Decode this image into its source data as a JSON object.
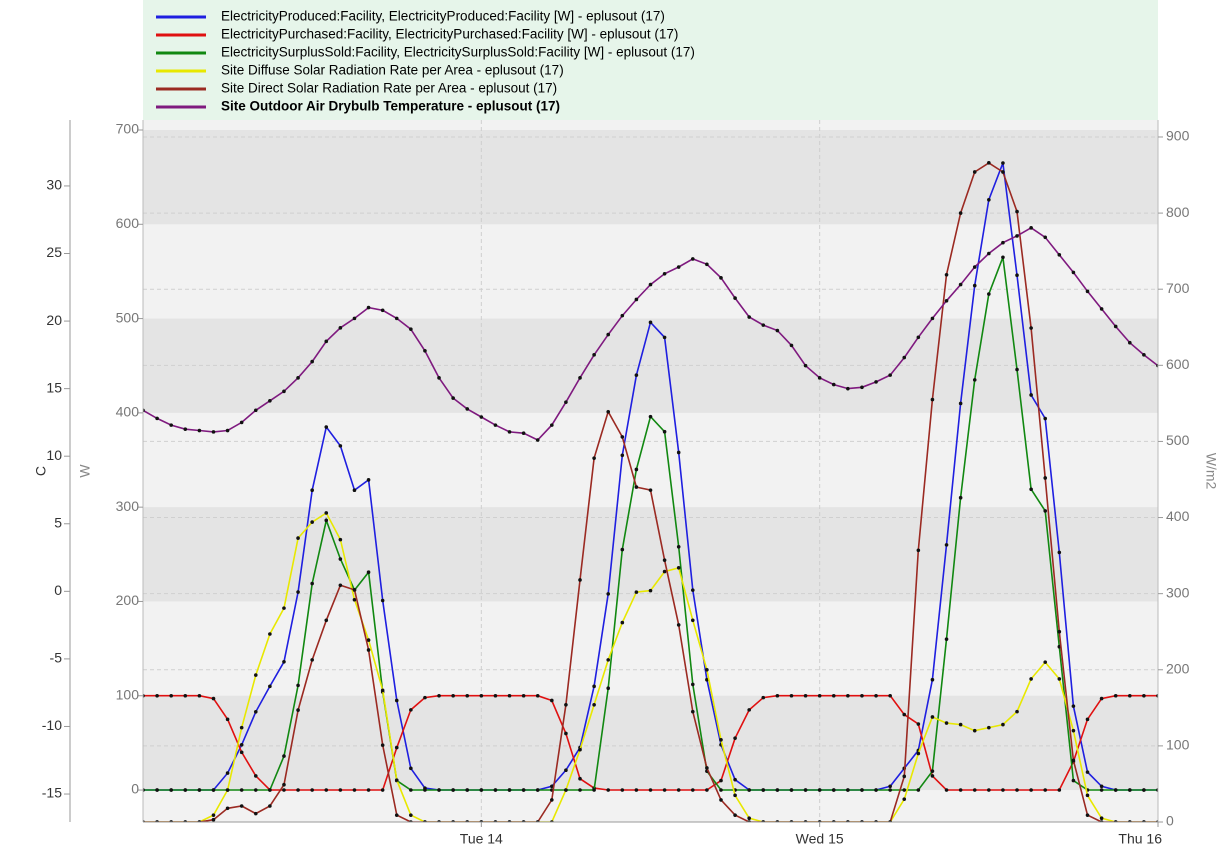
{
  "chart_data": {
    "type": "line",
    "ylabel": "W",
    "y2label": "C",
    "y3label": "W/m2",
    "x": [
      0,
      1,
      2,
      3,
      4,
      5,
      6,
      7,
      8,
      9,
      10,
      11,
      12,
      13,
      14,
      15,
      16,
      17,
      18,
      19,
      20,
      21,
      22,
      23,
      24,
      25,
      26,
      27,
      28,
      29,
      30,
      31,
      32,
      33,
      34,
      35,
      36,
      37,
      38,
      39,
      40,
      41,
      42,
      43,
      44,
      45,
      46,
      47,
      48,
      49,
      50,
      51,
      52,
      53,
      54,
      55,
      56,
      57,
      58,
      59,
      60,
      61,
      62,
      63,
      64,
      65,
      66,
      67,
      68,
      69,
      70,
      71,
      72
    ],
    "xlim": [
      0,
      72
    ],
    "xticks": [
      {
        "value": 24,
        "label": "Tue 14"
      },
      {
        "value": 48,
        "label": "Wed 15"
      },
      {
        "value": 72,
        "label": "Thu 16"
      }
    ],
    "ylim": [
      -33.9,
      710.6
    ],
    "yticks": [
      0,
      100,
      200,
      300,
      400,
      500,
      600,
      700
    ],
    "y2lim": [
      -17.07,
      34.88
    ],
    "y2ticks": [
      -15,
      -10,
      -5,
      0,
      5,
      10,
      15,
      20,
      25,
      30
    ],
    "y3lim": [
      0,
      922.3
    ],
    "y3ticks": [
      0,
      100,
      200,
      300,
      400,
      500,
      600,
      700,
      800,
      900
    ],
    "grid": true,
    "series": [
      {
        "name": "ElectricityProduced:Facility, ElectricityProduced:Facility [W] - eplusout (17)",
        "color": "#1f1fe0",
        "values": [
          0,
          0,
          0,
          0,
          0,
          0,
          18,
          48,
          83,
          110,
          136,
          210,
          318,
          385,
          365,
          318,
          329,
          201,
          95,
          23,
          2,
          0,
          0,
          0,
          0,
          0,
          0,
          0,
          0,
          4,
          21,
          45,
          110,
          208,
          355,
          440,
          496,
          480,
          358,
          212,
          117,
          48,
          11,
          0,
          0,
          0,
          0,
          0,
          0,
          0,
          0,
          0,
          0,
          4,
          23,
          42,
          117,
          260,
          410,
          535,
          626,
          665,
          546,
          419,
          394,
          252,
          89,
          19,
          4,
          0,
          0,
          0,
          0
        ]
      },
      {
        "name": "ElectricityPurchased:Facility, ElectricityPurchased:Facility [W] - eplusout (17)",
        "color": "#e01010",
        "values": [
          100,
          100,
          100,
          100,
          100,
          97,
          75,
          40,
          15,
          0,
          0,
          0,
          0,
          0,
          0,
          0,
          0,
          0,
          45,
          85,
          98,
          100,
          100,
          100,
          100,
          100,
          100,
          100,
          100,
          95,
          60,
          12,
          2,
          0,
          0,
          0,
          0,
          0,
          0,
          0,
          0,
          10,
          55,
          85,
          98,
          100,
          100,
          100,
          100,
          100,
          100,
          100,
          100,
          100,
          80,
          70,
          15,
          0,
          0,
          0,
          0,
          0,
          0,
          0,
          0,
          0,
          30,
          75,
          97,
          100,
          100,
          100,
          100
        ]
      },
      {
        "name": "ElectricitySurplusSold:Facility, ElectricitySurplusSold:Facility [W] - eplusout (17)",
        "color": "#118811",
        "values": [
          0,
          0,
          0,
          0,
          0,
          0,
          0,
          0,
          0,
          0,
          36,
          111,
          219,
          286,
          245,
          212,
          231,
          104,
          10,
          0,
          0,
          0,
          0,
          0,
          0,
          0,
          0,
          0,
          0,
          0,
          0,
          0,
          0,
          108,
          255,
          340,
          396,
          380,
          258,
          112,
          20,
          0,
          0,
          0,
          0,
          0,
          0,
          0,
          0,
          0,
          0,
          0,
          0,
          0,
          0,
          0,
          20,
          160,
          310,
          435,
          526,
          565,
          446,
          319,
          296,
          152,
          10,
          0,
          0,
          0,
          0,
          0,
          0
        ]
      },
      {
        "name": "Site Diffuse Solar Radiation Rate per Area - eplusout (17)",
        "color": "#e8e800",
        "axis": "y3",
        "values": [
          0,
          0,
          0,
          0,
          0,
          9,
          42,
          124,
          193,
          247,
          281,
          373,
          394,
          406,
          371,
          292,
          239,
          173,
          55,
          9,
          0,
          0,
          0,
          0,
          0,
          0,
          0,
          0,
          0,
          0,
          42,
          95,
          154,
          213,
          262,
          302,
          304,
          329,
          334,
          265,
          200,
          108,
          35,
          5,
          0,
          0,
          0,
          0,
          0,
          0,
          0,
          0,
          0,
          0,
          30,
          90,
          138,
          130,
          128,
          120,
          124,
          128,
          145,
          188,
          210,
          188,
          120,
          35,
          5,
          0,
          0,
          0,
          0
        ]
      },
      {
        "name": "Site Direct Solar Radiation Rate per Area - eplusout (17)",
        "color": "#9b2a22",
        "axis": "y3",
        "values": [
          0,
          0,
          0,
          0,
          0,
          3,
          18,
          21,
          11,
          21,
          49,
          147,
          213,
          265,
          311,
          305,
          226,
          101,
          9,
          0,
          0,
          0,
          0,
          0,
          0,
          0,
          0,
          0,
          0,
          29,
          154,
          318,
          478,
          539,
          506,
          440,
          436,
          344,
          259,
          145,
          71,
          29,
          9,
          0,
          0,
          0,
          0,
          0,
          0,
          0,
          0,
          0,
          0,
          0,
          60,
          357,
          555,
          719,
          800,
          854,
          866,
          854,
          802,
          649,
          452,
          250,
          81,
          9,
          0,
          0,
          0,
          0,
          0
        ]
      },
      {
        "name": "Site Outdoor Air Drybulb Temperature - eplusout (17)",
        "color": "#7f1a7f",
        "axis": "y2",
        "values": [
          13.4,
          12.8,
          12.3,
          12.0,
          11.9,
          11.8,
          11.9,
          12.5,
          13.4,
          14.1,
          14.8,
          15.8,
          17.0,
          18.5,
          19.5,
          20.2,
          21.0,
          20.8,
          20.2,
          19.4,
          17.8,
          15.8,
          14.3,
          13.5,
          12.9,
          12.3,
          11.8,
          11.7,
          11.2,
          12.3,
          14.0,
          15.8,
          17.5,
          19.0,
          20.4,
          21.6,
          22.7,
          23.5,
          24.0,
          24.6,
          24.2,
          23.2,
          21.7,
          20.3,
          19.7,
          19.3,
          18.2,
          16.7,
          15.8,
          15.3,
          15.0,
          15.1,
          15.5,
          16.0,
          17.3,
          18.8,
          20.2,
          21.5,
          22.7,
          24.0,
          25.0,
          25.8,
          26.3,
          26.9,
          26.2,
          24.9,
          23.6,
          22.2,
          20.9,
          19.6,
          18.4,
          17.5,
          16.7
        ]
      }
    ]
  }
}
